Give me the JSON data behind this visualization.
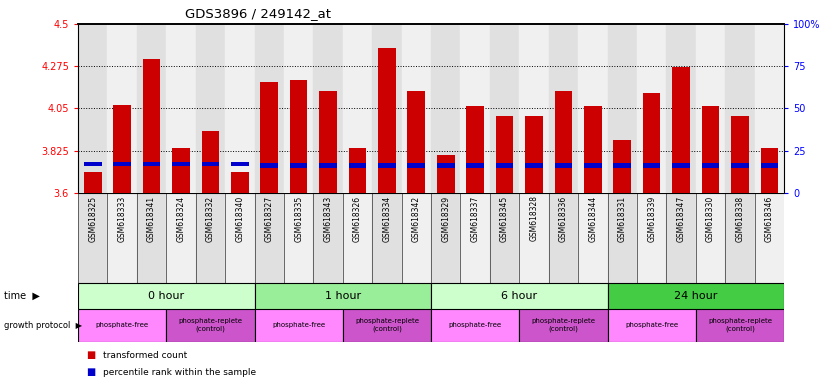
{
  "title": "GDS3896 / 249142_at",
  "samples": [
    "GSM618325",
    "GSM618333",
    "GSM618341",
    "GSM618324",
    "GSM618332",
    "GSM618340",
    "GSM618327",
    "GSM618335",
    "GSM618343",
    "GSM618326",
    "GSM618334",
    "GSM618342",
    "GSM618329",
    "GSM618337",
    "GSM618345",
    "GSM618328",
    "GSM618336",
    "GSM618344",
    "GSM618331",
    "GSM618339",
    "GSM618347",
    "GSM618330",
    "GSM618338",
    "GSM618346"
  ],
  "transformed_counts": [
    3.71,
    4.07,
    4.31,
    3.84,
    3.93,
    3.71,
    4.19,
    4.2,
    4.14,
    3.84,
    4.37,
    4.14,
    3.8,
    4.06,
    4.01,
    4.01,
    4.14,
    4.06,
    3.88,
    4.13,
    4.27,
    4.06,
    4.01,
    3.84
  ],
  "percentile_values": [
    17,
    17,
    17,
    17,
    17,
    17,
    16,
    16,
    16,
    16,
    16,
    16,
    16,
    16,
    16,
    16,
    16,
    16,
    16,
    16,
    16,
    16,
    16,
    16
  ],
  "ymin": 3.6,
  "ymax": 4.5,
  "yticks": [
    3.6,
    3.825,
    4.05,
    4.275,
    4.5
  ],
  "ytick_labels": [
    "3.6",
    "3.825",
    "4.05",
    "4.275",
    "4.5"
  ],
  "right_yticks": [
    0,
    25,
    50,
    75,
    100
  ],
  "right_ytick_labels": [
    "0",
    "25",
    "50",
    "75",
    "100%"
  ],
  "bar_color": "#cc0000",
  "percentile_color": "#0000cc",
  "grid_color": "#000000",
  "time_groups": [
    {
      "label": "0 hour",
      "start": 0,
      "end": 6,
      "color": "#ccffcc"
    },
    {
      "label": "1 hour",
      "start": 6,
      "end": 12,
      "color": "#99ee99"
    },
    {
      "label": "6 hour",
      "start": 12,
      "end": 18,
      "color": "#ccffcc"
    },
    {
      "label": "24 hour",
      "start": 18,
      "end": 24,
      "color": "#44cc44"
    }
  ],
  "protocol_groups": [
    {
      "label": "phosphate-free",
      "start": 0,
      "end": 3,
      "color": "#ff88ff"
    },
    {
      "label": "phosphate-replete\n(control)",
      "start": 3,
      "end": 6,
      "color": "#cc55cc"
    },
    {
      "label": "phosphate-free",
      "start": 6,
      "end": 9,
      "color": "#ff88ff"
    },
    {
      "label": "phosphate-replete\n(control)",
      "start": 9,
      "end": 12,
      "color": "#cc55cc"
    },
    {
      "label": "phosphate-free",
      "start": 12,
      "end": 15,
      "color": "#ff88ff"
    },
    {
      "label": "phosphate-replete\n(control)",
      "start": 15,
      "end": 18,
      "color": "#cc55cc"
    },
    {
      "label": "phosphate-free",
      "start": 18,
      "end": 21,
      "color": "#ff88ff"
    },
    {
      "label": "phosphate-replete\n(control)",
      "start": 21,
      "end": 24,
      "color": "#cc55cc"
    }
  ],
  "bar_width": 0.6,
  "col_colors": [
    "#e0e0e0",
    "#f0f0f0"
  ]
}
